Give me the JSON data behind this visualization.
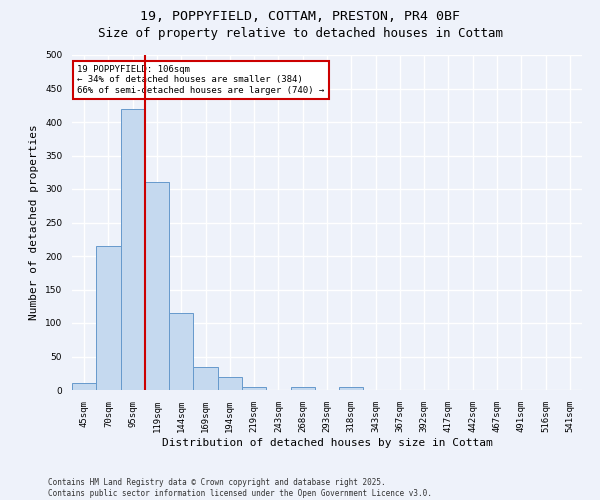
{
  "title_line1": "19, POPPYFIELD, COTTAM, PRESTON, PR4 0BF",
  "title_line2": "Size of property relative to detached houses in Cottam",
  "xlabel": "Distribution of detached houses by size in Cottam",
  "ylabel": "Number of detached properties",
  "bar_color": "#c5d9ef",
  "bar_edge_color": "#6699cc",
  "categories": [
    "45sqm",
    "70sqm",
    "95sqm",
    "119sqm",
    "144sqm",
    "169sqm",
    "194sqm",
    "219sqm",
    "243sqm",
    "268sqm",
    "293sqm",
    "318sqm",
    "343sqm",
    "367sqm",
    "392sqm",
    "417sqm",
    "442sqm",
    "467sqm",
    "491sqm",
    "516sqm",
    "541sqm"
  ],
  "values": [
    10,
    215,
    420,
    310,
    115,
    35,
    20,
    5,
    0,
    5,
    0,
    5,
    0,
    0,
    0,
    0,
    0,
    0,
    0,
    0,
    0
  ],
  "ylim": [
    0,
    500
  ],
  "yticks": [
    0,
    50,
    100,
    150,
    200,
    250,
    300,
    350,
    400,
    450,
    500
  ],
  "property_line_x": 2.5,
  "annotation_text_line1": "19 POPPYFIELD: 106sqm",
  "annotation_text_line2": "← 34% of detached houses are smaller (384)",
  "annotation_text_line3": "66% of semi-detached houses are larger (740) →",
  "annotation_box_color": "#ffffff",
  "annotation_box_edge": "#cc0000",
  "vline_color": "#cc0000",
  "background_color": "#eef2fa",
  "grid_color": "#ffffff",
  "footnote_line1": "Contains HM Land Registry data © Crown copyright and database right 2025.",
  "footnote_line2": "Contains public sector information licensed under the Open Government Licence v3.0.",
  "title_fontsize": 9.5,
  "tick_fontsize": 6.5,
  "label_fontsize": 8,
  "footnote_fontsize": 5.5
}
